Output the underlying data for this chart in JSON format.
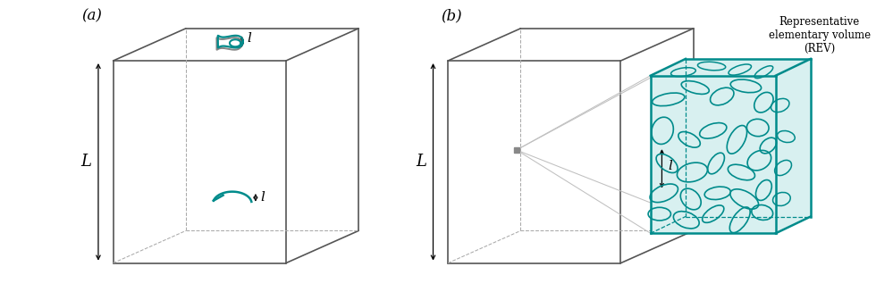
{
  "teal_color": "#008B8B",
  "dark_gray": "#555555",
  "light_gray": "#999999",
  "bg_color": "#ffffff",
  "rev_fill": "#d8f0f0",
  "title_a": "(a)",
  "title_b": "(b)",
  "label_L": "L",
  "label_l": "l",
  "rev_label": "Representative\nelementary volume\n(REV)",
  "ellipses_front": [
    [
      7.9,
      6.7,
      0.55,
      0.2,
      10
    ],
    [
      8.8,
      7.1,
      0.48,
      0.19,
      -15
    ],
    [
      9.7,
      6.8,
      0.42,
      0.26,
      25
    ],
    [
      10.5,
      7.15,
      0.52,
      0.21,
      -8
    ],
    [
      11.1,
      6.6,
      0.38,
      0.27,
      50
    ],
    [
      7.7,
      5.65,
      0.46,
      0.36,
      75
    ],
    [
      8.6,
      5.35,
      0.4,
      0.21,
      -28
    ],
    [
      9.4,
      5.65,
      0.47,
      0.23,
      18
    ],
    [
      10.2,
      5.35,
      0.52,
      0.26,
      62
    ],
    [
      10.9,
      5.75,
      0.37,
      0.29,
      -4
    ],
    [
      11.25,
      5.15,
      0.32,
      0.21,
      42
    ],
    [
      7.85,
      4.55,
      0.42,
      0.23,
      -38
    ],
    [
      8.7,
      4.25,
      0.52,
      0.31,
      14
    ],
    [
      9.5,
      4.55,
      0.4,
      0.21,
      57
    ],
    [
      10.35,
      4.25,
      0.47,
      0.23,
      -18
    ],
    [
      10.95,
      4.65,
      0.42,
      0.31,
      28
    ],
    [
      7.75,
      3.55,
      0.5,
      0.26,
      23
    ],
    [
      8.65,
      3.35,
      0.4,
      0.29,
      -48
    ],
    [
      9.55,
      3.55,
      0.44,
      0.21,
      8
    ],
    [
      10.45,
      3.35,
      0.52,
      0.26,
      -28
    ],
    [
      11.1,
      3.65,
      0.37,
      0.23,
      62
    ],
    [
      7.6,
      2.85,
      0.38,
      0.22,
      0
    ],
    [
      8.5,
      2.65,
      0.45,
      0.26,
      -20
    ],
    [
      9.4,
      2.85,
      0.42,
      0.2,
      35
    ],
    [
      10.3,
      2.65,
      0.5,
      0.23,
      55
    ],
    [
      11.05,
      2.9,
      0.36,
      0.25,
      -10
    ]
  ],
  "ellipses_right": [
    [
      11.65,
      6.5,
      0.32,
      0.21,
      22
    ],
    [
      11.85,
      5.45,
      0.3,
      0.19,
      -12
    ],
    [
      11.75,
      4.4,
      0.32,
      0.21,
      38
    ],
    [
      11.7,
      3.35,
      0.3,
      0.22,
      15
    ]
  ],
  "ellipses_top": [
    [
      8.4,
      7.62,
      0.42,
      0.14,
      8
    ],
    [
      9.35,
      7.82,
      0.47,
      0.14,
      -4
    ],
    [
      10.3,
      7.7,
      0.4,
      0.14,
      18
    ],
    [
      11.1,
      7.62,
      0.35,
      0.13,
      30
    ]
  ]
}
